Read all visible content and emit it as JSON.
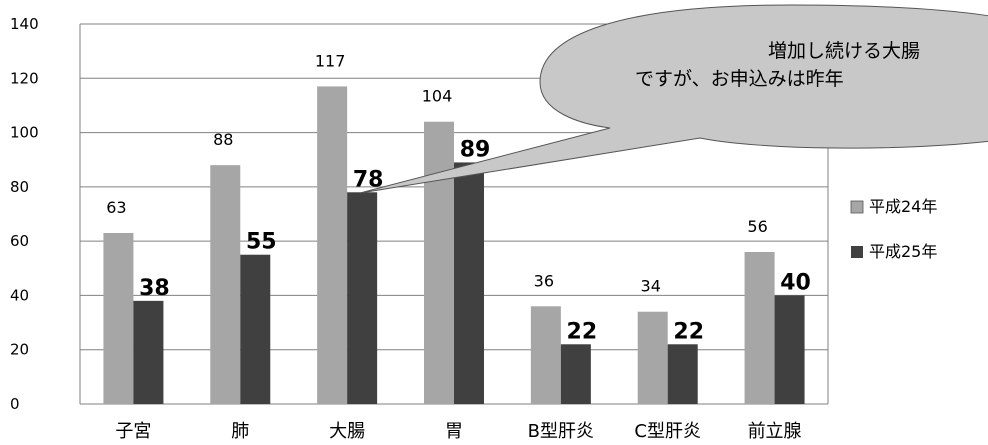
{
  "chart_data": {
    "type": "bar",
    "categories": [
      "子宮",
      "肺",
      "大腸",
      "胃",
      "B型肝炎",
      "C型肝炎",
      "前立腺"
    ],
    "series": [
      {
        "name": "平成24年",
        "values": [
          63,
          88,
          117,
          104,
          36,
          34,
          56
        ],
        "color": "#a6a6a6"
      },
      {
        "name": "平成25年",
        "values": [
          38,
          55,
          78,
          89,
          22,
          22,
          40
        ],
        "color": "#404040"
      }
    ],
    "ylim": [
      0,
      140
    ],
    "yticks": [
      0,
      20,
      40,
      60,
      80,
      100,
      120,
      140
    ],
    "grid": true,
    "legend": "right",
    "callout": {
      "lines": [
        "増加し続ける大腸",
        "ですが、お申込みは昨年"
      ],
      "fill": "#c8c8c8",
      "points_to": "大腸"
    }
  }
}
